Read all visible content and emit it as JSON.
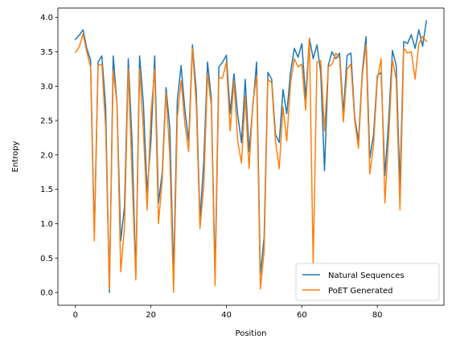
{
  "chart_data": {
    "type": "line",
    "xlabel": "Position",
    "ylabel": "Entropy",
    "xlim": [
      -4.65,
      97.65
    ],
    "ylim": [
      -0.186,
      4.136
    ],
    "xticks": [
      0,
      20,
      40,
      60,
      80
    ],
    "yticks": [
      0.0,
      0.5,
      1.0,
      1.5,
      2.0,
      2.5,
      3.0,
      3.5,
      4.0
    ],
    "ytick_labels": [
      "0.0",
      "0.5",
      "1.0",
      "1.5",
      "2.0",
      "2.5",
      "3.0",
      "3.5",
      "4.0"
    ],
    "grid": false,
    "legend_position": "lower-right",
    "series": [
      {
        "name": "Natural Sequences",
        "color": "#1f77b4",
        "values": [
          3.68,
          3.74,
          3.82,
          3.55,
          3.38,
          0.85,
          3.35,
          3.44,
          2.7,
          0.0,
          3.44,
          2.75,
          0.75,
          1.25,
          3.4,
          2.18,
          0.25,
          3.44,
          2.75,
          1.45,
          2.2,
          3.44,
          1.3,
          1.75,
          2.98,
          2.4,
          0.25,
          2.8,
          3.3,
          2.65,
          2.2,
          3.6,
          2.95,
          1.05,
          1.9,
          3.35,
          2.82,
          0.25,
          3.28,
          3.35,
          3.45,
          2.6,
          3.18,
          2.58,
          2.18,
          3.1,
          2.05,
          2.7,
          3.35,
          0.25,
          0.8,
          3.2,
          3.1,
          2.3,
          2.18,
          2.95,
          2.6,
          3.2,
          3.55,
          3.42,
          3.62,
          2.82,
          3.7,
          3.4,
          3.6,
          3.2,
          1.77,
          3.3,
          3.5,
          3.4,
          3.48,
          2.6,
          3.45,
          3.48,
          2.55,
          2.2,
          3.2,
          3.72,
          1.95,
          2.3,
          3.15,
          3.2,
          1.7,
          2.5,
          3.52,
          3.3,
          1.55,
          3.65,
          3.62,
          3.75,
          3.55,
          3.82,
          3.58,
          3.95
        ]
      },
      {
        "name": "PoET Generated",
        "color": "#ff7f0e",
        "values": [
          3.49,
          3.57,
          3.76,
          3.5,
          3.28,
          0.75,
          3.3,
          3.32,
          2.4,
          0.05,
          3.22,
          2.75,
          0.3,
          0.95,
          3.25,
          1.7,
          0.18,
          3.25,
          2.35,
          1.2,
          2.6,
          3.25,
          1.0,
          1.65,
          2.9,
          2.0,
          0.0,
          2.55,
          3.08,
          2.45,
          2.05,
          3.55,
          2.75,
          0.93,
          1.55,
          3.18,
          2.72,
          0.1,
          3.12,
          3.12,
          3.35,
          2.35,
          3.08,
          2.2,
          1.88,
          2.85,
          1.8,
          2.75,
          3.15,
          0.05,
          0.6,
          3.1,
          3.05,
          2.2,
          1.8,
          2.7,
          2.2,
          3.05,
          3.4,
          3.28,
          3.32,
          2.65,
          3.7,
          0.4,
          3.35,
          3.37,
          2.35,
          3.28,
          3.32,
          3.48,
          3.4,
          2.48,
          3.25,
          3.32,
          2.5,
          2.1,
          3.15,
          3.6,
          1.72,
          2.15,
          3.1,
          3.4,
          1.3,
          2.25,
          3.38,
          3.1,
          1.2,
          3.55,
          3.48,
          3.5,
          3.1,
          3.62,
          3.72,
          3.65
        ]
      }
    ]
  }
}
